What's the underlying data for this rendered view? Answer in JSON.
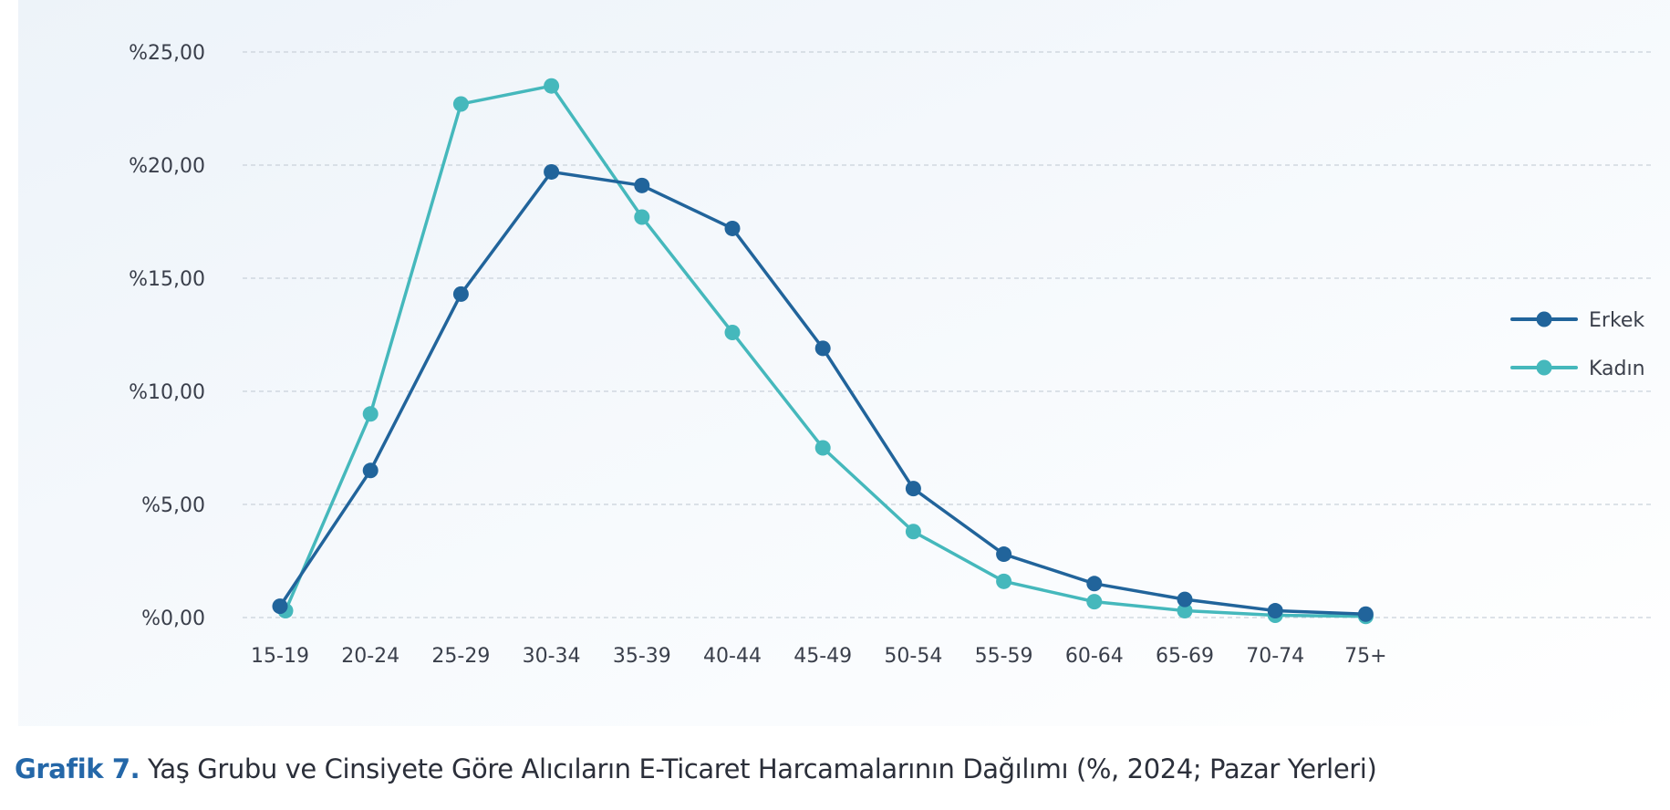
{
  "caption": {
    "label": "Grafik 7.",
    "text": " Yaş Grubu ve Cinsiyete Göre Alıcıların E-Ticaret Harcamalarının Dağılımı (%, 2024; Pazar Yerleri)"
  },
  "chart_data": {
    "type": "line",
    "categories": [
      "15-19",
      "20-24",
      "25-29",
      "30-34",
      "35-39",
      "40-44",
      "45-49",
      "50-54",
      "55-59",
      "60-64",
      "65-69",
      "70-74",
      "75+"
    ],
    "series": [
      {
        "name": "Erkek",
        "color": "#21649b",
        "values": [
          0.5,
          6.5,
          14.3,
          19.7,
          19.1,
          17.2,
          11.9,
          5.7,
          2.8,
          1.5,
          0.8,
          0.3,
          0.15
        ]
      },
      {
        "name": "Kadın",
        "color": "#45b8bc",
        "values": [
          0.3,
          9.0,
          22.7,
          23.5,
          17.7,
          12.6,
          7.5,
          3.8,
          1.6,
          0.7,
          0.3,
          0.1,
          0.05
        ]
      }
    ],
    "yticks": [
      0,
      5,
      10,
      15,
      20,
      25
    ],
    "ytick_labels": [
      "%0,00",
      "%5,00",
      "%10,00",
      "%15,00",
      "%20,00",
      "%25,00"
    ],
    "ylim": [
      0,
      25
    ],
    "grid": true,
    "legend_position": "right"
  }
}
